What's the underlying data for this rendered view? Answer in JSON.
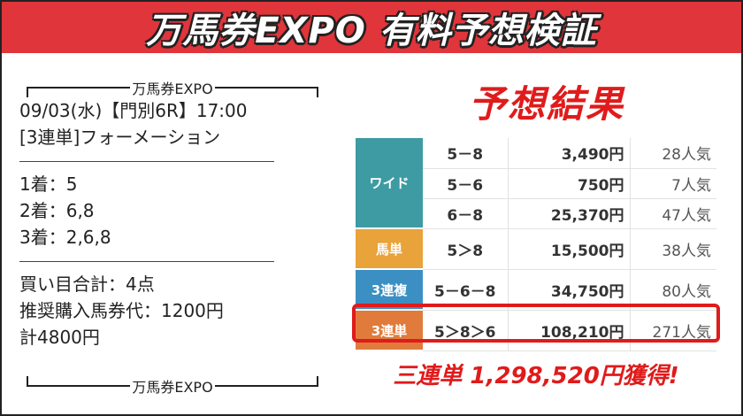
{
  "banner": {
    "title": "万馬券EXPO 有料予想検証"
  },
  "ticket": {
    "bracket_label": "万馬券EXPO",
    "race_line": "09/03(水)【門別6R】17:00",
    "bet_type": "[3連単]フォーメーション",
    "first": "1着：5",
    "second": "2着：6,8",
    "third": "3着：2,6,8",
    "points": "買い目合計：4点",
    "recommended": "推奨購入馬券代：1200円",
    "total": "計4800円"
  },
  "results": {
    "title": "予想結果",
    "colors": {
      "wide": "#3e9aa3",
      "umatan": "#e8a33a",
      "sanrenpuku": "#3b8fc2",
      "sanrentan": "#e07b3c",
      "highlight": "#e01b1b"
    },
    "wide_label": "ワイド",
    "wide_rows": [
      {
        "combo": "5－8",
        "payout": "3,490円",
        "popularity": "28人気"
      },
      {
        "combo": "5－6",
        "payout": "750円",
        "popularity": "7人気"
      },
      {
        "combo": "6－8",
        "payout": "25,370円",
        "popularity": "47人気"
      }
    ],
    "umatan": {
      "label": "馬単",
      "combo": "5＞8",
      "payout": "15,500円",
      "popularity": "38人気"
    },
    "sanrenpuku": {
      "label": "3連複",
      "combo": "5－6－8",
      "payout": "34,750円",
      "popularity": "80人気"
    },
    "sanrentan": {
      "label": "3連単",
      "combo": "5＞8＞6",
      "payout": "108,210円",
      "popularity": "271人気"
    }
  },
  "win_text": "三連単 1,298,520円獲得!"
}
